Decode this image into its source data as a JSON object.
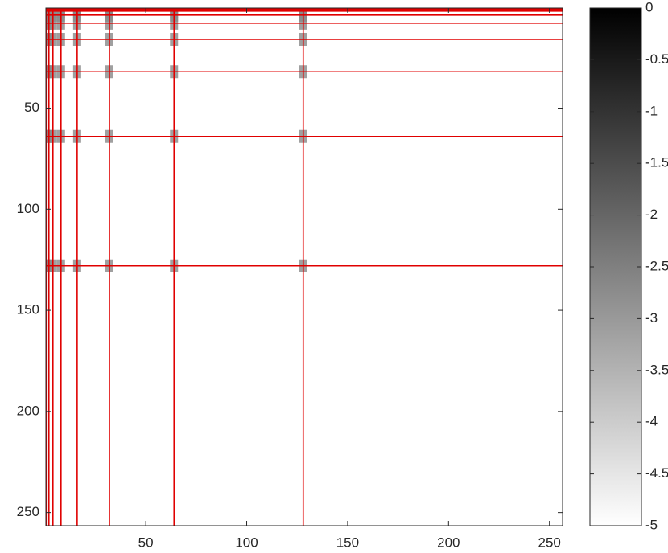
{
  "chart_data": {
    "type": "heatmap",
    "xlim": [
      0.5,
      256.5
    ],
    "ylim": [
      0.5,
      256.5
    ],
    "y_reversed": true,
    "xticks": [
      50,
      100,
      150,
      200,
      250
    ],
    "yticks": [
      50,
      100,
      150,
      200,
      250
    ],
    "line_positions": [
      1,
      2,
      4,
      8,
      16,
      32,
      64,
      128
    ],
    "line_color": "#e00000",
    "clim": [
      -5,
      0
    ],
    "colorbar_ticks": [
      0,
      -0.5,
      -1,
      -1.5,
      -2,
      -2.5,
      -3,
      -3.5,
      -4,
      -4.5,
      -5
    ],
    "colormap": [
      "#ffffff",
      "#000000"
    ]
  }
}
